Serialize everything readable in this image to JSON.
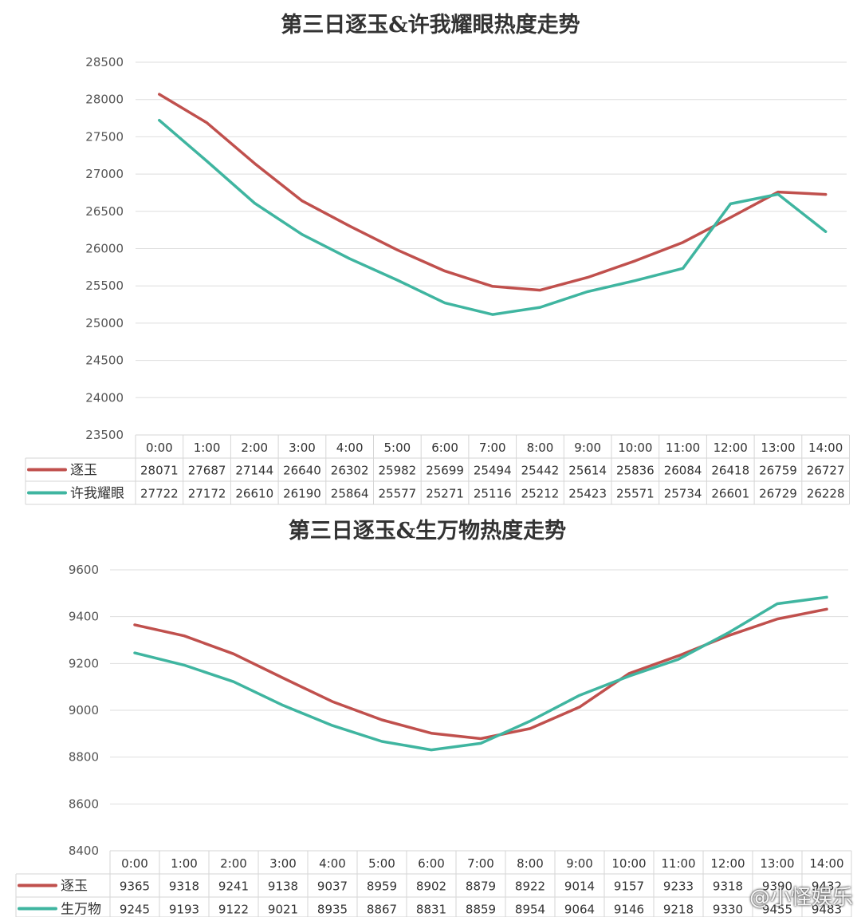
{
  "colors": {
    "series1": "#c0504d",
    "series2": "#3fb5a0"
  },
  "watermark": "@小怪娱乐",
  "chart_data": [
    {
      "type": "line",
      "title": "第三日逐玉&许我耀眼热度走势",
      "xlabel": "",
      "ylabel": "",
      "ylim": [
        23500,
        28500
      ],
      "yticks": [
        "28500",
        "28000",
        "27500",
        "27000",
        "26500",
        "26000",
        "25500",
        "25000",
        "24500",
        "24000",
        "23500"
      ],
      "grid": true,
      "legend": "data-table",
      "categories": [
        "0:00",
        "1:00",
        "2:00",
        "3:00",
        "4:00",
        "5:00",
        "6:00",
        "7:00",
        "8:00",
        "9:00",
        "10:00",
        "11:00",
        "12:00",
        "13:00",
        "14:00"
      ],
      "series": [
        {
          "name": "逐玉",
          "values": [
            28071,
            27687,
            27144,
            26640,
            26302,
            25982,
            25699,
            25494,
            25442,
            25614,
            25836,
            26084,
            26418,
            26759,
            26727
          ]
        },
        {
          "name": "许我耀眼",
          "values": [
            27722,
            27172,
            26610,
            26190,
            25864,
            25577,
            25271,
            25116,
            25212,
            25423,
            25571,
            25734,
            26601,
            26729,
            26228
          ]
        }
      ]
    },
    {
      "type": "line",
      "title": "第三日逐玉&生万物热度走势",
      "xlabel": "",
      "ylabel": "",
      "ylim": [
        8400,
        9600
      ],
      "yticks": [
        "9600",
        "9400",
        "9200",
        "9000",
        "8800",
        "8600",
        "8400"
      ],
      "grid": true,
      "legend": "data-table",
      "categories": [
        "0:00",
        "1:00",
        "2:00",
        "3:00",
        "4:00",
        "5:00",
        "6:00",
        "7:00",
        "8:00",
        "9:00",
        "10:00",
        "11:00",
        "12:00",
        "13:00",
        "14:00"
      ],
      "series": [
        {
          "name": "逐玉",
          "values": [
            9365,
            9318,
            9241,
            9138,
            9037,
            8959,
            8902,
            8879,
            8922,
            9014,
            9157,
            9233,
            9318,
            9390,
            9432
          ]
        },
        {
          "name": "生万物",
          "values": [
            9245,
            9193,
            9122,
            9021,
            8935,
            8867,
            8831,
            8859,
            8954,
            9064,
            9146,
            9218,
            9330,
            9455,
            9483
          ]
        }
      ]
    }
  ]
}
